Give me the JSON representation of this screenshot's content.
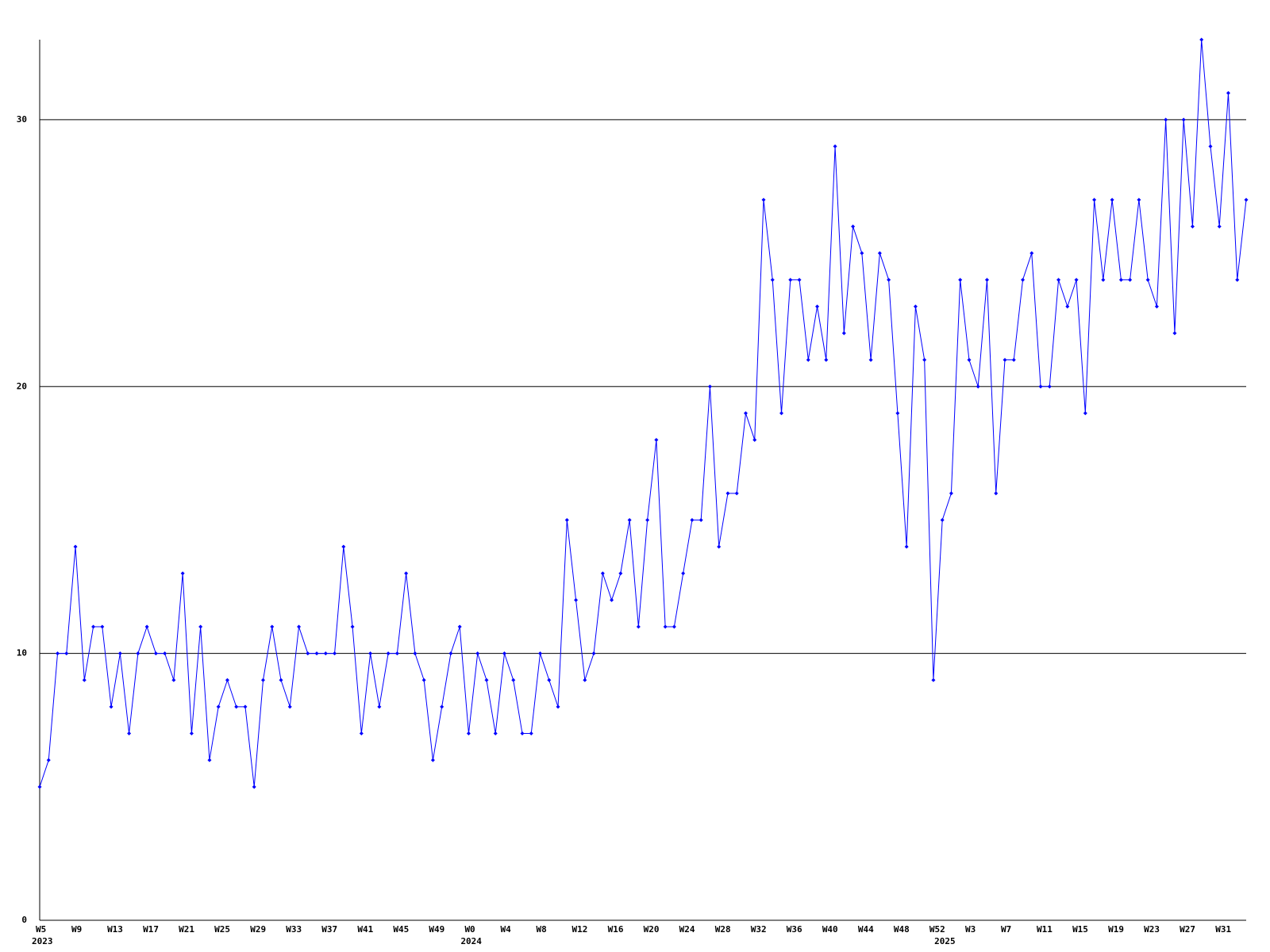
{
  "chart_data": {
    "type": "line",
    "categories": [
      "W5",
      null,
      null,
      null,
      "W9",
      null,
      null,
      null,
      "W13",
      null,
      null,
      null,
      "W17",
      null,
      null,
      null,
      "W21",
      null,
      null,
      null,
      "W25",
      null,
      null,
      null,
      "W29",
      null,
      null,
      null,
      "W33",
      null,
      null,
      null,
      "W37",
      null,
      null,
      null,
      "W41",
      null,
      null,
      null,
      "W45",
      null,
      null,
      null,
      "W49",
      null,
      null,
      null,
      "W0",
      null,
      null,
      null,
      "W4",
      null,
      null,
      null,
      "W8",
      null,
      null,
      null,
      "W12",
      null,
      null,
      null,
      "W16",
      null,
      null,
      null,
      "W20",
      null,
      null,
      null,
      "W24",
      null,
      null,
      null,
      "W28",
      null,
      null,
      null,
      "W32",
      null,
      null,
      null,
      "W36",
      null,
      null,
      null,
      "W40",
      null,
      null,
      null,
      "W44",
      null,
      null,
      null,
      "W48",
      null,
      null,
      null,
      "W52",
      null,
      null,
      null,
      "W3",
      null,
      null,
      null,
      "W7",
      null,
      null,
      null,
      "W11",
      null,
      null,
      null,
      "W15",
      null,
      null,
      null,
      "W19",
      null,
      null,
      null,
      "W23",
      null,
      null,
      null,
      "W27",
      null,
      null,
      null,
      "W31",
      null,
      null,
      null
    ],
    "year_labels": [
      "2023",
      null,
      null,
      null,
      null,
      null,
      null,
      null,
      null,
      null,
      null,
      null,
      null,
      null,
      null,
      null,
      null,
      null,
      null,
      null,
      null,
      null,
      null,
      null,
      null,
      null,
      null,
      null,
      null,
      null,
      null,
      null,
      null,
      null,
      null,
      null,
      null,
      null,
      null,
      null,
      null,
      null,
      null,
      null,
      null,
      null,
      null,
      null,
      "2024",
      null,
      null,
      null,
      null,
      null,
      null,
      null,
      null,
      null,
      null,
      null,
      null,
      null,
      null,
      null,
      null,
      null,
      null,
      null,
      null,
      null,
      null,
      null,
      null,
      null,
      null,
      null,
      null,
      null,
      null,
      null,
      null,
      null,
      null,
      null,
      null,
      null,
      null,
      null,
      null,
      null,
      null,
      null,
      null,
      null,
      null,
      null,
      null,
      null,
      null,
      null,
      null,
      "2025",
      null,
      null,
      null,
      null,
      null,
      null,
      null,
      null,
      null,
      null,
      null,
      null,
      null,
      null,
      null,
      null,
      null,
      null,
      null,
      null,
      null,
      null,
      null,
      null,
      null,
      null,
      null,
      null,
      null,
      null,
      null,
      null,
      null,
      null
    ],
    "values": [
      5,
      6,
      10,
      10,
      14,
      9,
      11,
      11,
      8,
      10,
      7,
      10,
      11,
      10,
      10,
      9,
      13,
      7,
      11,
      6,
      8,
      9,
      8,
      8,
      5,
      9,
      11,
      9,
      8,
      11,
      10,
      10,
      10,
      10,
      14,
      11,
      7,
      10,
      8,
      10,
      10,
      13,
      10,
      9,
      6,
      8,
      10,
      11,
      7,
      10,
      9,
      7,
      10,
      9,
      7,
      7,
      10,
      9,
      8,
      15,
      12,
      9,
      10,
      13,
      12,
      13,
      15,
      11,
      15,
      18,
      11,
      11,
      13,
      15,
      15,
      20,
      14,
      16,
      16,
      19,
      18,
      27,
      24,
      19,
      24,
      24,
      21,
      23,
      21,
      29,
      22,
      26,
      25,
      21,
      25,
      24,
      19,
      14,
      23,
      21,
      9,
      15,
      16,
      24,
      21,
      20,
      24,
      16,
      21,
      21,
      24,
      25,
      20,
      20,
      24,
      23,
      24,
      19,
      27,
      24,
      27,
      24,
      24,
      27,
      24,
      23,
      30,
      22,
      30,
      26,
      33,
      29,
      26,
      31,
      24,
      27
    ],
    "color": "#0000ff",
    "ylim": [
      0,
      33
    ],
    "yticks": [
      0,
      10,
      20,
      30
    ],
    "grid": true
  }
}
